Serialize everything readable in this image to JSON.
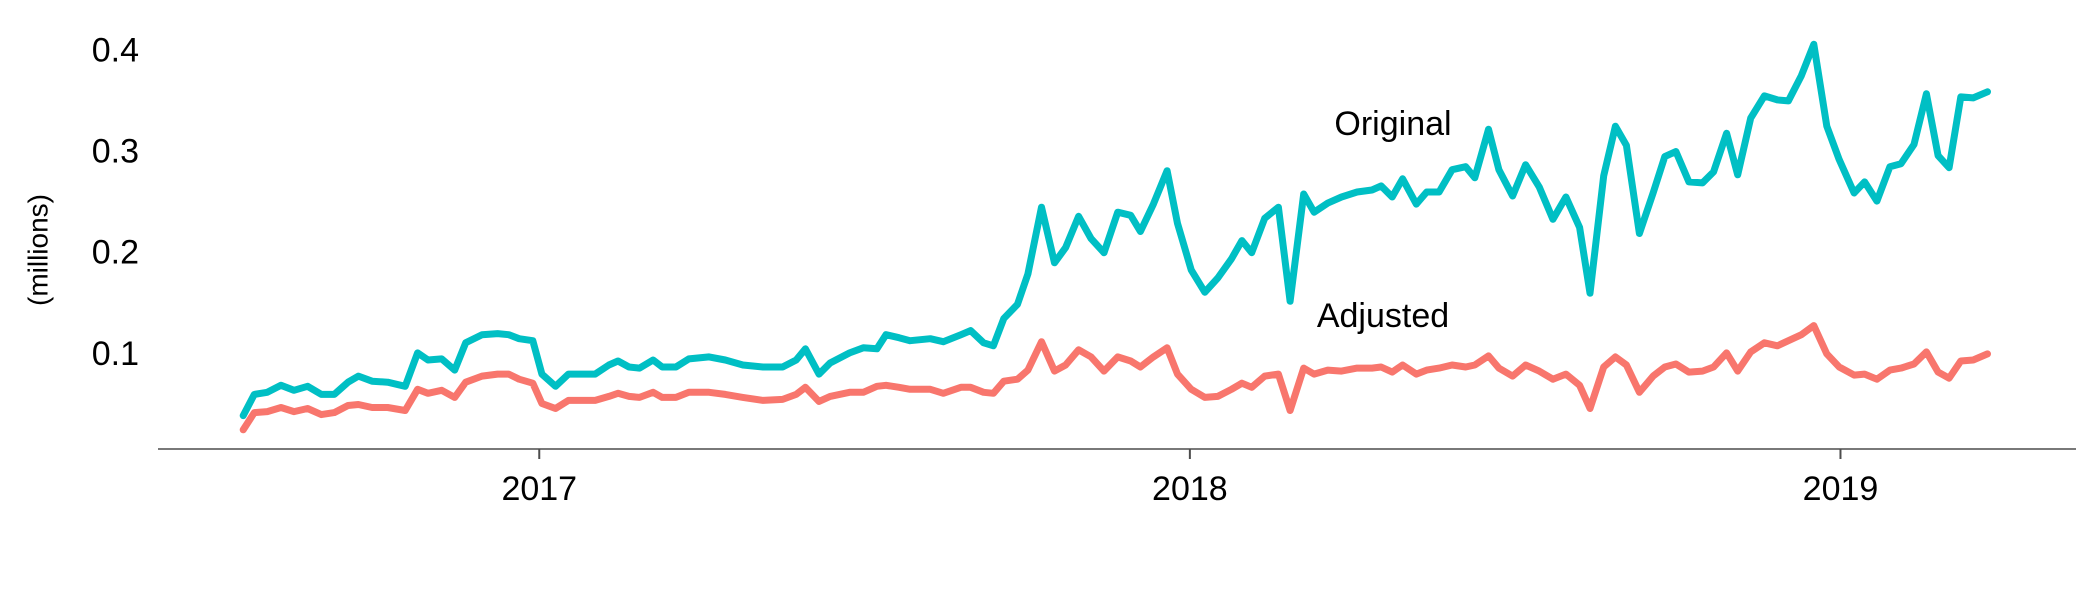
{
  "chart_data": {
    "type": "line",
    "y_label": "(millions)",
    "x": [
      2016.545,
      2016.562,
      2016.582,
      2016.603,
      2016.623,
      2016.644,
      2016.665,
      2016.685,
      2016.706,
      2016.722,
      2016.743,
      2016.767,
      2016.794,
      2016.813,
      2016.829,
      2016.85,
      2016.87,
      2016.887,
      2016.912,
      2016.936,
      2016.953,
      2016.969,
      2016.99,
      2017.004,
      2017.025,
      2017.045,
      2017.076,
      2017.086,
      2017.107,
      2017.121,
      2017.138,
      2017.154,
      2017.175,
      2017.189,
      2017.21,
      2017.23,
      2017.261,
      2017.286,
      2017.313,
      2017.344,
      2017.374,
      2017.395,
      2017.409,
      2017.43,
      2017.447,
      2017.477,
      2017.498,
      2017.519,
      2017.533,
      2017.553,
      2017.57,
      2017.601,
      2017.621,
      2017.648,
      2017.663,
      2017.683,
      2017.698,
      2017.714,
      2017.735,
      2017.751,
      2017.772,
      2017.792,
      2017.809,
      2017.829,
      2017.848,
      2017.868,
      2017.889,
      2017.909,
      2017.924,
      2017.944,
      2017.965,
      2017.981,
      2018.002,
      2018.023,
      2018.043,
      2018.064,
      2018.08,
      2018.095,
      2018.115,
      2018.136,
      2018.154,
      2018.175,
      2018.191,
      2018.212,
      2018.233,
      2018.257,
      2018.28,
      2018.294,
      2018.311,
      2018.327,
      2018.348,
      2018.364,
      2018.383,
      2018.403,
      2018.424,
      2018.438,
      2018.459,
      2018.475,
      2018.496,
      2018.516,
      2018.537,
      2018.558,
      2018.578,
      2018.599,
      2018.615,
      2018.636,
      2018.654,
      2018.671,
      2018.691,
      2018.712,
      2018.73,
      2018.747,
      2018.767,
      2018.788,
      2018.805,
      2018.825,
      2018.842,
      2018.862,
      2018.883,
      2018.903,
      2018.92,
      2018.94,
      2018.959,
      2018.979,
      2018.998,
      2019.021,
      2019.037,
      2019.056,
      2019.076,
      2019.093,
      2019.113,
      2019.132,
      2019.15,
      2019.167,
      2019.185,
      2019.204,
      2019.226
    ],
    "series": [
      {
        "name": "Original",
        "color": "#00bfc4",
        "values": [
          0.041,
          0.062,
          0.064,
          0.071,
          0.066,
          0.07,
          0.062,
          0.062,
          0.074,
          0.08,
          0.075,
          0.074,
          0.07,
          0.103,
          0.096,
          0.097,
          0.086,
          0.113,
          0.121,
          0.122,
          0.121,
          0.117,
          0.115,
          0.082,
          0.07,
          0.082,
          0.082,
          0.082,
          0.091,
          0.095,
          0.089,
          0.088,
          0.096,
          0.089,
          0.089,
          0.097,
          0.099,
          0.096,
          0.091,
          0.089,
          0.089,
          0.096,
          0.107,
          0.082,
          0.093,
          0.103,
          0.108,
          0.107,
          0.121,
          0.118,
          0.115,
          0.117,
          0.114,
          0.121,
          0.125,
          0.113,
          0.11,
          0.137,
          0.151,
          0.181,
          0.247,
          0.192,
          0.207,
          0.238,
          0.216,
          0.202,
          0.242,
          0.239,
          0.223,
          0.25,
          0.283,
          0.231,
          0.185,
          0.163,
          0.177,
          0.196,
          0.214,
          0.202,
          0.236,
          0.247,
          0.154,
          0.26,
          0.242,
          0.251,
          0.257,
          0.262,
          0.264,
          0.268,
          0.257,
          0.275,
          0.25,
          0.262,
          0.262,
          0.284,
          0.287,
          0.276,
          0.324,
          0.284,
          0.258,
          0.289,
          0.267,
          0.235,
          0.257,
          0.227,
          0.162,
          0.278,
          0.327,
          0.308,
          0.221,
          0.261,
          0.297,
          0.302,
          0.272,
          0.271,
          0.282,
          0.32,
          0.279,
          0.335,
          0.357,
          0.353,
          0.352,
          0.377,
          0.408,
          0.327,
          0.294,
          0.261,
          0.272,
          0.253,
          0.287,
          0.29,
          0.309,
          0.359,
          0.298,
          0.286,
          0.356,
          0.355,
          0.361
        ]
      },
      {
        "name": "Adjusted",
        "color": "#f8766d",
        "values": [
          0.027,
          0.044,
          0.045,
          0.049,
          0.045,
          0.048,
          0.042,
          0.044,
          0.051,
          0.052,
          0.049,
          0.049,
          0.046,
          0.067,
          0.063,
          0.066,
          0.059,
          0.074,
          0.08,
          0.082,
          0.082,
          0.077,
          0.073,
          0.053,
          0.048,
          0.056,
          0.056,
          0.056,
          0.06,
          0.063,
          0.06,
          0.059,
          0.064,
          0.059,
          0.059,
          0.064,
          0.064,
          0.062,
          0.059,
          0.056,
          0.057,
          0.062,
          0.069,
          0.055,
          0.06,
          0.064,
          0.064,
          0.07,
          0.071,
          0.069,
          0.067,
          0.067,
          0.063,
          0.069,
          0.069,
          0.064,
          0.063,
          0.075,
          0.077,
          0.086,
          0.114,
          0.085,
          0.091,
          0.106,
          0.099,
          0.085,
          0.099,
          0.095,
          0.089,
          0.099,
          0.108,
          0.082,
          0.067,
          0.059,
          0.06,
          0.067,
          0.073,
          0.069,
          0.08,
          0.082,
          0.046,
          0.088,
          0.082,
          0.086,
          0.085,
          0.088,
          0.088,
          0.089,
          0.084,
          0.091,
          0.082,
          0.086,
          0.088,
          0.091,
          0.089,
          0.091,
          0.1,
          0.088,
          0.08,
          0.091,
          0.085,
          0.077,
          0.082,
          0.071,
          0.048,
          0.089,
          0.099,
          0.091,
          0.064,
          0.08,
          0.089,
          0.092,
          0.084,
          0.085,
          0.089,
          0.103,
          0.085,
          0.104,
          0.113,
          0.11,
          0.115,
          0.121,
          0.13,
          0.102,
          0.089,
          0.081,
          0.082,
          0.077,
          0.086,
          0.088,
          0.092,
          0.104,
          0.084,
          0.078,
          0.095,
          0.096,
          0.102
        ]
      }
    ],
    "xlim": [
      2016.414,
      2019.362
    ],
    "xticks": [
      2017,
      2018,
      2019
    ],
    "ylim": [
      0.008,
      0.43
    ],
    "yticks": [
      0.1,
      0.2,
      0.3,
      0.4
    ],
    "grid": false
  }
}
